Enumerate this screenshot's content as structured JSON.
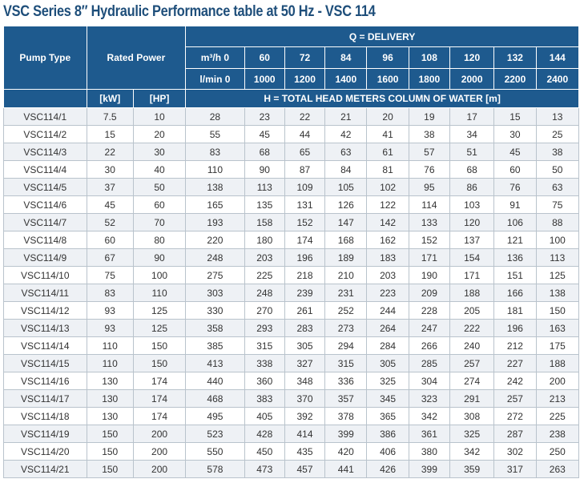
{
  "title": "VSC Series 8″ Hydraulic Performance table at 50 Hz - VSC 114",
  "header": {
    "pump_type": "Pump Type",
    "rated_power": "Rated Power",
    "delivery": "Q = DELIVERY",
    "unit_m3h": "m³/h 0",
    "unit_lmin": "l/min 0",
    "kw": "[kW]",
    "hp": "[HP]",
    "head": "H = TOTAL HEAD METERS COLUMN OF WATER [m]",
    "flow_m3h": [
      "60",
      "72",
      "84",
      "96",
      "108",
      "120",
      "132",
      "144"
    ],
    "flow_lmin": [
      "1000",
      "1200",
      "1400",
      "1600",
      "1800",
      "2000",
      "2200",
      "2400"
    ]
  },
  "rows": [
    {
      "pump": "VSC114/1",
      "kw": "7.5",
      "hp": "10",
      "heads": [
        "28",
        "23",
        "22",
        "21",
        "20",
        "19",
        "17",
        "15",
        "13"
      ]
    },
    {
      "pump": "VSC114/2",
      "kw": "15",
      "hp": "20",
      "heads": [
        "55",
        "45",
        "44",
        "42",
        "41",
        "38",
        "34",
        "30",
        "25"
      ]
    },
    {
      "pump": "VSC114/3",
      "kw": "22",
      "hp": "30",
      "heads": [
        "83",
        "68",
        "65",
        "63",
        "61",
        "57",
        "51",
        "45",
        "38"
      ]
    },
    {
      "pump": "VSC114/4",
      "kw": "30",
      "hp": "40",
      "heads": [
        "110",
        "90",
        "87",
        "84",
        "81",
        "76",
        "68",
        "60",
        "50"
      ]
    },
    {
      "pump": "VSC114/5",
      "kw": "37",
      "hp": "50",
      "heads": [
        "138",
        "113",
        "109",
        "105",
        "102",
        "95",
        "86",
        "76",
        "63"
      ]
    },
    {
      "pump": "VSC114/6",
      "kw": "45",
      "hp": "60",
      "heads": [
        "165",
        "135",
        "131",
        "126",
        "122",
        "114",
        "103",
        "91",
        "75"
      ]
    },
    {
      "pump": "VSC114/7",
      "kw": "52",
      "hp": "70",
      "heads": [
        "193",
        "158",
        "152",
        "147",
        "142",
        "133",
        "120",
        "106",
        "88"
      ]
    },
    {
      "pump": "VSC114/8",
      "kw": "60",
      "hp": "80",
      "heads": [
        "220",
        "180",
        "174",
        "168",
        "162",
        "152",
        "137",
        "121",
        "100"
      ]
    },
    {
      "pump": "VSC114/9",
      "kw": "67",
      "hp": "90",
      "heads": [
        "248",
        "203",
        "196",
        "189",
        "183",
        "171",
        "154",
        "136",
        "113"
      ]
    },
    {
      "pump": "VSC114/10",
      "kw": "75",
      "hp": "100",
      "heads": [
        "275",
        "225",
        "218",
        "210",
        "203",
        "190",
        "171",
        "151",
        "125"
      ]
    },
    {
      "pump": "VSC114/11",
      "kw": "83",
      "hp": "110",
      "heads": [
        "303",
        "248",
        "239",
        "231",
        "223",
        "209",
        "188",
        "166",
        "138"
      ]
    },
    {
      "pump": "VSC114/12",
      "kw": "93",
      "hp": "125",
      "heads": [
        "330",
        "270",
        "261",
        "252",
        "244",
        "228",
        "205",
        "181",
        "150"
      ]
    },
    {
      "pump": "VSC114/13",
      "kw": "93",
      "hp": "125",
      "heads": [
        "358",
        "293",
        "283",
        "273",
        "264",
        "247",
        "222",
        "196",
        "163"
      ]
    },
    {
      "pump": "VSC114/14",
      "kw": "110",
      "hp": "150",
      "heads": [
        "385",
        "315",
        "305",
        "294",
        "284",
        "266",
        "240",
        "212",
        "175"
      ]
    },
    {
      "pump": "VSC114/15",
      "kw": "110",
      "hp": "150",
      "heads": [
        "413",
        "338",
        "327",
        "315",
        "305",
        "285",
        "257",
        "227",
        "188"
      ]
    },
    {
      "pump": "VSC114/16",
      "kw": "130",
      "hp": "174",
      "heads": [
        "440",
        "360",
        "348",
        "336",
        "325",
        "304",
        "274",
        "242",
        "200"
      ]
    },
    {
      "pump": "VSC114/17",
      "kw": "130",
      "hp": "174",
      "heads": [
        "468",
        "383",
        "370",
        "357",
        "345",
        "323",
        "291",
        "257",
        "213"
      ]
    },
    {
      "pump": "VSC114/18",
      "kw": "130",
      "hp": "174",
      "heads": [
        "495",
        "405",
        "392",
        "378",
        "365",
        "342",
        "308",
        "272",
        "225"
      ]
    },
    {
      "pump": "VSC114/19",
      "kw": "150",
      "hp": "200",
      "heads": [
        "523",
        "428",
        "414",
        "399",
        "386",
        "361",
        "325",
        "287",
        "238"
      ]
    },
    {
      "pump": "VSC114/20",
      "kw": "150",
      "hp": "200",
      "heads": [
        "550",
        "450",
        "435",
        "420",
        "406",
        "380",
        "342",
        "302",
        "250"
      ]
    },
    {
      "pump": "VSC114/21",
      "kw": "150",
      "hp": "200",
      "heads": [
        "578",
        "473",
        "457",
        "441",
        "426",
        "399",
        "359",
        "317",
        "263"
      ]
    }
  ]
}
